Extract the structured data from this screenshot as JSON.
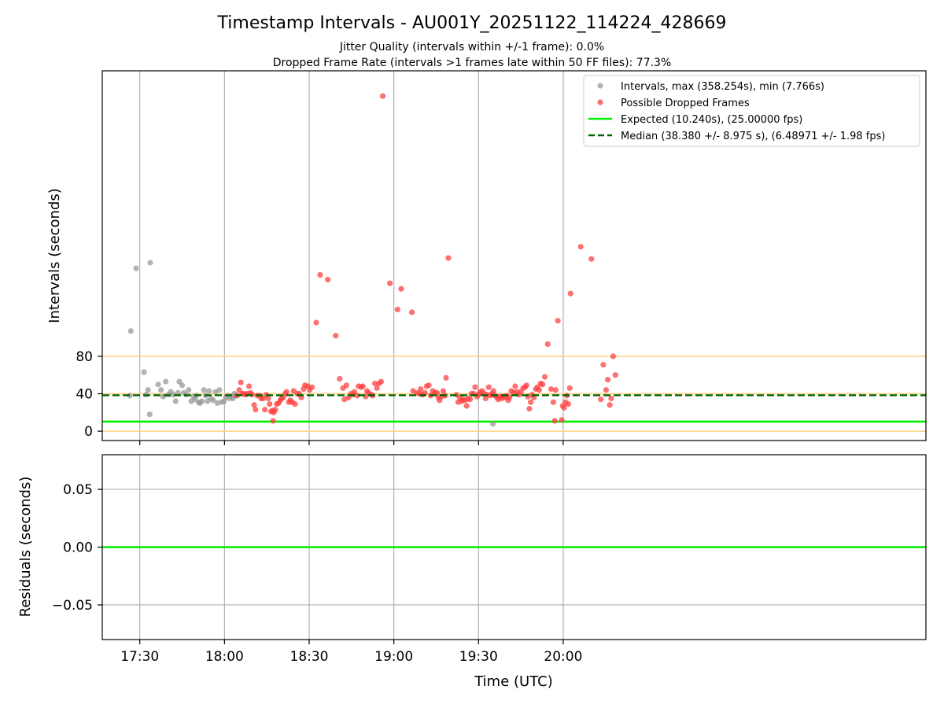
{
  "chart_data": [
    {
      "type": "scatter",
      "title": "Timestamp Intervals - AU001Y_20251122_114224_428669",
      "subtitle_1": "Jitter Quality (intervals within +/-1 frame): 0.0%",
      "subtitle_2": "Dropped Frame Rate (intervals >1 frames late within 50 FF files): 77.3%",
      "ylabel": "Intervals (seconds)",
      "xlim_minutes": [
        1036.7,
        1328.5
      ],
      "ylim": [
        -10,
        385
      ],
      "yticks": [
        0,
        40,
        80
      ],
      "ytick_labels": [
        "0",
        "40",
        "80"
      ],
      "xtick_minutes": [
        1050,
        1080,
        1110,
        1140,
        1170,
        1200
      ],
      "xtick_labels": [
        "17:30",
        "18:00",
        "18:30",
        "19:00",
        "19:30",
        "20:00"
      ],
      "grid": true,
      "legend_position": "upper-right",
      "bands": [
        0,
        40,
        80
      ],
      "band_color": "#ffd27f",
      "expected_value": 10.24,
      "expected_color": "#00ee00",
      "median_value": 38.38,
      "median_color": "#006400",
      "normal_color": "#999999",
      "dropped_color": "#ff4040",
      "legend": [
        {
          "label": "Intervals, max (358.254s), min (7.766s)",
          "kind": "dot",
          "color": "#999999"
        },
        {
          "label": "Possible Dropped Frames",
          "kind": "dot",
          "color": "#ff4040"
        },
        {
          "label": "Expected (10.240s), (25.00000 fps)",
          "kind": "solid",
          "color": "#00ee00"
        },
        {
          "label": "Median (38.380 +/- 8.975 s), (6.48971 +/- 1.98 fps)",
          "kind": "dashed",
          "color": "#006400"
        }
      ],
      "series": [
        {
          "name": "Intervals",
          "points": [
            [
              1046.5,
              38
            ],
            [
              1046.8,
              107
            ],
            [
              1048.7,
              174
            ],
            [
              1051.5,
              63
            ],
            [
              1052.2,
              39
            ],
            [
              1052.9,
              44
            ],
            [
              1053.5,
              18
            ],
            [
              1053.7,
              180
            ],
            [
              1056.5,
              50
            ],
            [
              1057.5,
              44
            ],
            [
              1058.3,
              37
            ],
            [
              1059.2,
              53
            ],
            [
              1060.1,
              39
            ],
            [
              1061.0,
              42
            ],
            [
              1061.8,
              39
            ],
            [
              1062.7,
              32
            ],
            [
              1063.5,
              41
            ],
            [
              1064.0,
              53
            ],
            [
              1065.0,
              49
            ],
            [
              1065.6,
              41
            ],
            [
              1066.4,
              39
            ],
            [
              1067.3,
              44
            ],
            [
              1068.2,
              32
            ],
            [
              1069.0,
              37
            ],
            [
              1069.5,
              34
            ],
            [
              1070.0,
              38
            ],
            [
              1070.8,
              31
            ],
            [
              1071.3,
              30
            ],
            [
              1072.0,
              32
            ],
            [
              1072.7,
              44
            ],
            [
              1073.3,
              38
            ],
            [
              1074.0,
              32
            ],
            [
              1074.5,
              43
            ],
            [
              1075.2,
              35
            ],
            [
              1076.0,
              33
            ],
            [
              1076.8,
              42
            ],
            [
              1077.5,
              30
            ],
            [
              1078.2,
              44
            ],
            [
              1079.0,
              31
            ],
            [
              1079.8,
              32
            ],
            [
              1080.5,
              36
            ],
            [
              1081.2,
              38
            ],
            [
              1081.8,
              35
            ],
            [
              1082.5,
              37
            ],
            [
              1083.0,
              35
            ],
            [
              1083.5,
              40
            ],
            [
              1084.0,
              38
            ],
            [
              1175.1,
              7.8
            ]
          ]
        },
        {
          "name": "Possible Dropped Frames",
          "points": [
            [
              1084.5,
              38
            ],
            [
              1085.2,
              44
            ],
            [
              1085.8,
              52
            ],
            [
              1086.3,
              40
            ],
            [
              1086.8,
              40
            ],
            [
              1087.5,
              39
            ],
            [
              1088.0,
              40
            ],
            [
              1088.7,
              48
            ],
            [
              1089.2,
              41
            ],
            [
              1089.8,
              39
            ],
            [
              1090.5,
              28
            ],
            [
              1091.0,
              23
            ],
            [
              1091.7,
              38
            ],
            [
              1092.5,
              38
            ],
            [
              1093.0,
              35
            ],
            [
              1093.7,
              35
            ],
            [
              1094.3,
              23
            ],
            [
              1094.8,
              39
            ],
            [
              1095.5,
              35
            ],
            [
              1096.0,
              29
            ],
            [
              1096.5,
              21
            ],
            [
              1097.0,
              22
            ],
            [
              1097.5,
              20
            ],
            [
              1097.2,
              11
            ],
            [
              1098.0,
              23
            ],
            [
              1098.5,
              29
            ],
            [
              1099.2,
              30
            ],
            [
              1099.8,
              33
            ],
            [
              1100.2,
              35
            ],
            [
              1100.8,
              36
            ],
            [
              1101.5,
              40
            ],
            [
              1102.0,
              42
            ],
            [
              1102.8,
              31
            ],
            [
              1103.3,
              33
            ],
            [
              1104.0,
              31
            ],
            [
              1104.5,
              43
            ],
            [
              1105.0,
              29
            ],
            [
              1105.8,
              40
            ],
            [
              1106.5,
              40
            ],
            [
              1107.2,
              36
            ],
            [
              1108.0,
              45
            ],
            [
              1108.5,
              49
            ],
            [
              1109.5,
              48
            ],
            [
              1110.2,
              44
            ],
            [
              1111.0,
              47
            ],
            [
              1112.5,
              116
            ],
            [
              1113.9,
              167
            ],
            [
              1116.6,
              162
            ],
            [
              1119.4,
              102
            ],
            [
              1120.8,
              56
            ],
            [
              1122.0,
              46
            ],
            [
              1122.5,
              34
            ],
            [
              1123.2,
              49
            ],
            [
              1124.0,
              36
            ],
            [
              1124.8,
              40
            ],
            [
              1125.5,
              39
            ],
            [
              1126.0,
              42
            ],
            [
              1127.0,
              38
            ],
            [
              1127.5,
              48
            ],
            [
              1128.5,
              47
            ],
            [
              1129.0,
              48
            ],
            [
              1130.0,
              37
            ],
            [
              1130.5,
              43
            ],
            [
              1131.0,
              41
            ],
            [
              1132.0,
              39
            ],
            [
              1132.5,
              38
            ],
            [
              1133.3,
              51
            ],
            [
              1134.0,
              46
            ],
            [
              1134.8,
              51
            ],
            [
              1135.5,
              53
            ],
            [
              1136.1,
              358
            ],
            [
              1138.6,
              158
            ],
            [
              1141.3,
              130
            ],
            [
              1142.6,
              152
            ],
            [
              1146.4,
              127
            ],
            [
              1146.8,
              43
            ],
            [
              1148.2,
              41
            ],
            [
              1149.0,
              40
            ],
            [
              1149.5,
              45
            ],
            [
              1150.2,
              39
            ],
            [
              1151.0,
              41
            ],
            [
              1151.6,
              48
            ],
            [
              1152.4,
              49
            ],
            [
              1153.0,
              38
            ],
            [
              1153.8,
              43
            ],
            [
              1154.5,
              41
            ],
            [
              1155.3,
              41
            ],
            [
              1155.8,
              36
            ],
            [
              1156.2,
              33
            ],
            [
              1157.0,
              37
            ],
            [
              1157.5,
              43
            ],
            [
              1158.2,
              38
            ],
            [
              1158.5,
              57
            ],
            [
              1159.3,
              185
            ],
            [
              1162.2,
              39
            ],
            [
              1162.8,
              31
            ],
            [
              1163.3,
              36
            ],
            [
              1164.0,
              32
            ],
            [
              1164.5,
              34
            ],
            [
              1165.3,
              33
            ],
            [
              1165.8,
              27
            ],
            [
              1166.4,
              35
            ],
            [
              1167.0,
              34
            ],
            [
              1167.5,
              40
            ],
            [
              1168.3,
              40
            ],
            [
              1168.8,
              47
            ],
            [
              1169.5,
              37
            ],
            [
              1170.0,
              39
            ],
            [
              1170.5,
              42
            ],
            [
              1171.3,
              43
            ],
            [
              1172.0,
              40
            ],
            [
              1172.5,
              35
            ],
            [
              1173.0,
              39
            ],
            [
              1173.6,
              47
            ],
            [
              1174.2,
              38
            ],
            [
              1174.8,
              40
            ],
            [
              1175.3,
              43
            ],
            [
              1175.8,
              38
            ],
            [
              1176.5,
              36
            ],
            [
              1177.0,
              34
            ],
            [
              1177.5,
              37
            ],
            [
              1178.2,
              35
            ],
            [
              1178.8,
              37
            ],
            [
              1179.3,
              36
            ],
            [
              1180.0,
              38
            ],
            [
              1180.5,
              33
            ],
            [
              1181.0,
              36
            ],
            [
              1181.6,
              43
            ],
            [
              1182.4,
              41
            ],
            [
              1183.0,
              48
            ],
            [
              1183.6,
              42
            ],
            [
              1184.2,
              39
            ],
            [
              1185.0,
              42
            ],
            [
              1185.8,
              46
            ],
            [
              1186.5,
              47
            ],
            [
              1187.0,
              49
            ],
            [
              1187.5,
              37
            ],
            [
              1188.0,
              24
            ],
            [
              1188.5,
              31
            ],
            [
              1189.0,
              39
            ],
            [
              1189.6,
              36
            ],
            [
              1190.3,
              45
            ],
            [
              1190.9,
              47
            ],
            [
              1191.5,
              44
            ],
            [
              1192.0,
              51
            ],
            [
              1192.7,
              50
            ],
            [
              1193.5,
              58
            ],
            [
              1194.5,
              93
            ],
            [
              1195.7,
              45
            ],
            [
              1196.5,
              31
            ],
            [
              1197.0,
              11
            ],
            [
              1197.3,
              44
            ],
            [
              1198.1,
              118
            ],
            [
              1199.5,
              12
            ],
            [
              1199.8,
              27
            ],
            [
              1200.3,
              25
            ],
            [
              1200.8,
              31
            ],
            [
              1201.3,
              38
            ],
            [
              1201.8,
              29
            ],
            [
              1202.3,
              46
            ],
            [
              1202.6,
              147
            ],
            [
              1206.2,
              197
            ],
            [
              1210.0,
              184
            ],
            [
              1213.3,
              34
            ],
            [
              1214.2,
              71
            ],
            [
              1215.2,
              44
            ],
            [
              1215.8,
              55
            ],
            [
              1216.5,
              28
            ],
            [
              1217.0,
              35
            ],
            [
              1217.7,
              80
            ],
            [
              1218.5,
              60
            ]
          ]
        }
      ]
    },
    {
      "type": "line",
      "ylabel": "Residuals (seconds)",
      "xlabel": "Time (UTC)",
      "xlim_minutes": [
        1036.7,
        1328.5
      ],
      "ylim": [
        -0.08,
        0.08
      ],
      "yticks": [
        -0.05,
        0,
        0.05
      ],
      "ytick_labels": [
        "−0.05",
        "0.00",
        "0.05"
      ],
      "xtick_minutes": [
        1050,
        1080,
        1110,
        1140,
        1170,
        1200
      ],
      "xtick_labels": [
        "17:30",
        "18:00",
        "18:30",
        "19:00",
        "19:30",
        "20:00"
      ],
      "grid": true,
      "series": [
        {
          "name": "Residuals",
          "values": [
            0.0
          ],
          "color": "#00ee00"
        }
      ]
    }
  ]
}
